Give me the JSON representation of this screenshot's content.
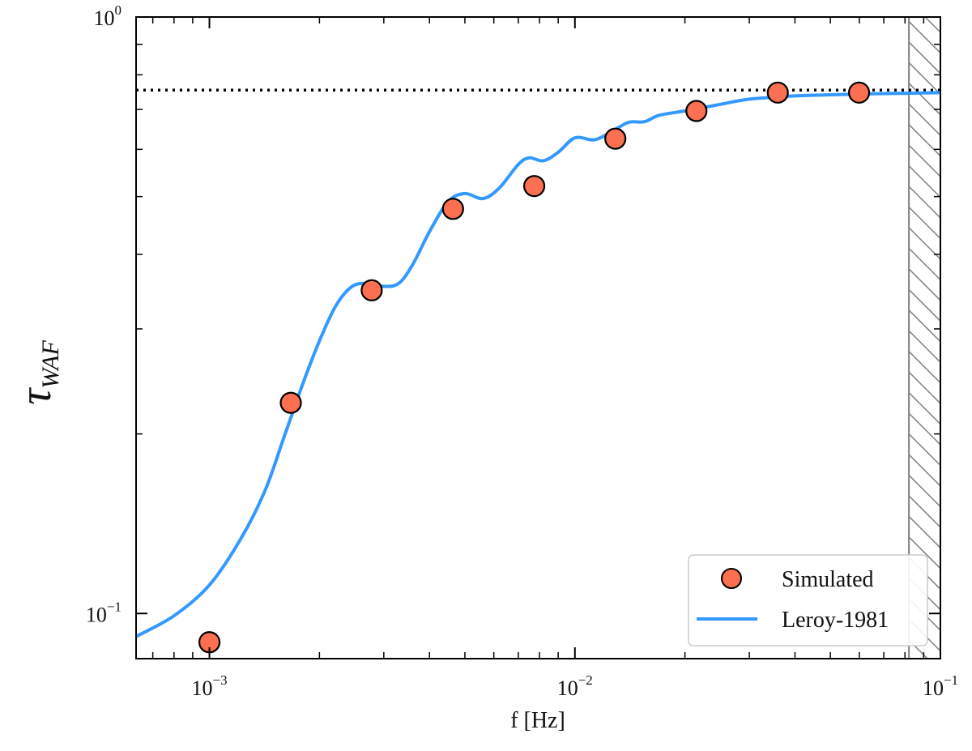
{
  "chart_data": {
    "type": "scatter",
    "xlabel": "f [Hz]",
    "ylabel": {
      "symbol": "τ",
      "subscript": "WAF"
    },
    "x_scale": "log",
    "y_scale": "log",
    "xlim": [
      0.00063,
      0.1
    ],
    "ylim": [
      0.084,
      1.0
    ],
    "x_ticks": [
      {
        "value": 0.001,
        "base": "10",
        "exp": "−3"
      },
      {
        "value": 0.01,
        "base": "10",
        "exp": "−2"
      },
      {
        "value": 0.1,
        "base": "10",
        "exp": "−1"
      }
    ],
    "y_ticks": [
      {
        "value": 0.1,
        "base": "10",
        "exp": "−1"
      },
      {
        "value": 1.0,
        "base": "10",
        "exp": "0"
      }
    ],
    "grid": false,
    "reference_line": {
      "style": "dotted",
      "color": "#000000",
      "y": 0.754
    },
    "hatched_region": {
      "x_from": 0.082,
      "x_to": 0.1,
      "color": "#808080"
    },
    "series": [
      {
        "name": "Simulated",
        "kind": "scatter",
        "color": "#fa7050",
        "edge_color": "#000000",
        "points": [
          {
            "x": 0.001,
            "y": 0.0895
          },
          {
            "x": 0.00167,
            "y": 0.2255
          },
          {
            "x": 0.00278,
            "y": 0.3482
          },
          {
            "x": 0.00464,
            "y": 0.4768
          },
          {
            "x": 0.00774,
            "y": 0.5207
          },
          {
            "x": 0.0129,
            "y": 0.6252
          },
          {
            "x": 0.0215,
            "y": 0.6958
          },
          {
            "x": 0.0359,
            "y": 0.7469
          },
          {
            "x": 0.0599,
            "y": 0.7469
          }
        ]
      },
      {
        "name": "Leroy-1981",
        "kind": "line",
        "color": "#3399ff",
        "points": [
          {
            "x": 0.00063,
            "y": 0.0915
          },
          {
            "x": 0.0008,
            "y": 0.0991
          },
          {
            "x": 0.001,
            "y": 0.1116
          },
          {
            "x": 0.00122,
            "y": 0.1336
          },
          {
            "x": 0.00142,
            "y": 0.1608
          },
          {
            "x": 0.0016,
            "y": 0.1975
          },
          {
            "x": 0.0018,
            "y": 0.2424
          },
          {
            "x": 0.002,
            "y": 0.2865
          },
          {
            "x": 0.00222,
            "y": 0.3283
          },
          {
            "x": 0.00245,
            "y": 0.3529
          },
          {
            "x": 0.0027,
            "y": 0.3578
          },
          {
            "x": 0.003,
            "y": 0.3535
          },
          {
            "x": 0.0033,
            "y": 0.3578
          },
          {
            "x": 0.0036,
            "y": 0.3848
          },
          {
            "x": 0.004,
            "y": 0.4366
          },
          {
            "x": 0.0045,
            "y": 0.4904
          },
          {
            "x": 0.005,
            "y": 0.5058
          },
          {
            "x": 0.0056,
            "y": 0.4962
          },
          {
            "x": 0.0062,
            "y": 0.5163
          },
          {
            "x": 0.007,
            "y": 0.5659
          },
          {
            "x": 0.0075,
            "y": 0.5806
          },
          {
            "x": 0.0082,
            "y": 0.5741
          },
          {
            "x": 0.009,
            "y": 0.5931
          },
          {
            "x": 0.01,
            "y": 0.6271
          },
          {
            "x": 0.0113,
            "y": 0.6224
          },
          {
            "x": 0.0125,
            "y": 0.6405
          },
          {
            "x": 0.014,
            "y": 0.6657
          },
          {
            "x": 0.0155,
            "y": 0.6675
          },
          {
            "x": 0.017,
            "y": 0.6843
          },
          {
            "x": 0.02,
            "y": 0.6959
          },
          {
            "x": 0.025,
            "y": 0.7137
          },
          {
            "x": 0.03,
            "y": 0.7282
          },
          {
            "x": 0.04,
            "y": 0.7373
          },
          {
            "x": 0.05,
            "y": 0.7406
          },
          {
            "x": 0.065,
            "y": 0.7437
          },
          {
            "x": 0.08,
            "y": 0.7448
          },
          {
            "x": 0.1,
            "y": 0.7469
          }
        ]
      }
    ],
    "legend": {
      "placement": "lower-right",
      "entries": [
        "Simulated",
        "Leroy-1981"
      ]
    }
  }
}
